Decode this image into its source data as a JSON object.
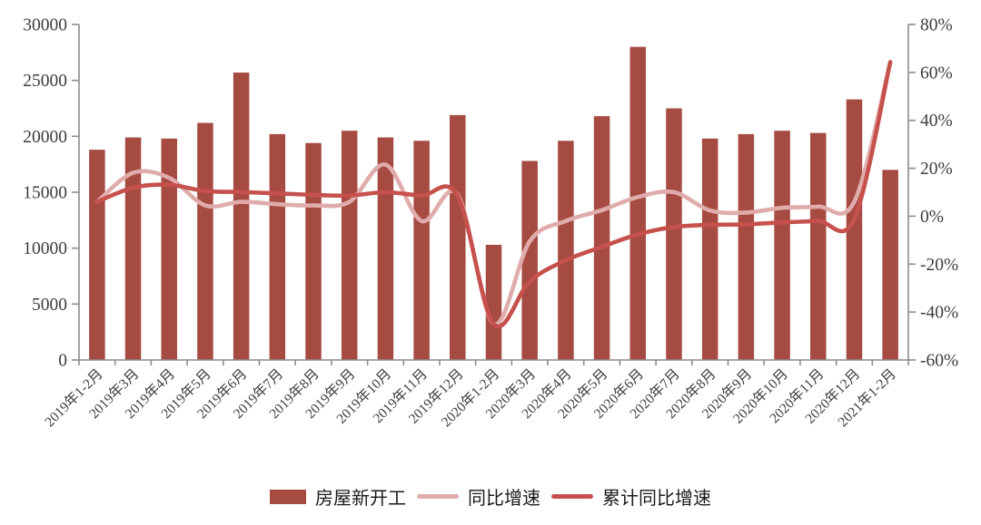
{
  "chart_data": {
    "type": "bar",
    "subtype": "bar-plus-lines-dual-axis",
    "categories": [
      "2019年1-2月",
      "2019年3月",
      "2019年4月",
      "2019年5月",
      "2019年6月",
      "2019年7月",
      "2019年8月",
      "2019年9月",
      "2019年10月",
      "2019年11月",
      "2019年12月",
      "2020年1-2月",
      "2020年3月",
      "2020年4月",
      "2020年5月",
      "2020年6月",
      "2020年7月",
      "2020年8月",
      "2020年9月",
      "2020年10月",
      "2020年11月",
      "2020年12月",
      "2021年1-2月"
    ],
    "series": [
      {
        "name": "房屋新开工",
        "id": "housing-starts",
        "type": "bar",
        "axis": "left",
        "color": "#A64B42",
        "values": [
          18800,
          19900,
          19800,
          21200,
          25700,
          20200,
          19400,
          20500,
          19900,
          19600,
          21900,
          10300,
          17800,
          19600,
          21800,
          28000,
          22500,
          19800,
          20200,
          20500,
          20300,
          23300,
          17000
        ]
      },
      {
        "name": "同比增速",
        "id": "yoy-growth",
        "type": "line",
        "axis": "right",
        "color": "#E0ACAB",
        "values": [
          6.0,
          18.1,
          16.0,
          4.5,
          6.0,
          5.0,
          4.5,
          6.0,
          21.5,
          -2.0,
          9.0,
          -44.9,
          -10.5,
          -2.0,
          2.5,
          8.0,
          10.0,
          2.4,
          1.5,
          3.5,
          4.0,
          6.0,
          64.3
        ]
      },
      {
        "name": "累计同比增速",
        "id": "cumulative-yoy-growth",
        "type": "line",
        "axis": "right",
        "color": "#C6514C",
        "values": [
          6.0,
          11.9,
          13.1,
          10.5,
          10.1,
          9.5,
          8.9,
          8.6,
          10.0,
          8.6,
          8.5,
          -44.9,
          -27.2,
          -18.4,
          -12.8,
          -7.6,
          -4.5,
          -3.6,
          -3.4,
          -2.6,
          -2.0,
          -1.2,
          64.3
        ]
      }
    ],
    "left_axis": {
      "min": 0,
      "max": 30000,
      "step": 5000,
      "labels": [
        "0",
        "5000",
        "10000",
        "15000",
        "20000",
        "25000",
        "30000"
      ]
    },
    "right_axis": {
      "min": -60,
      "max": 80,
      "step": 20,
      "labels": [
        "-60%",
        "-40%",
        "-20%",
        "0%",
        "20%",
        "40%",
        "60%",
        "80%"
      ]
    },
    "grid": false,
    "legend_position": "bottom",
    "x_label_rotation_deg": 45,
    "colors": {
      "axis": "#8c8c8c",
      "tick_label": "#3d3d3d",
      "legend_text": "#1b1b1b",
      "background": "#ffffff"
    }
  }
}
